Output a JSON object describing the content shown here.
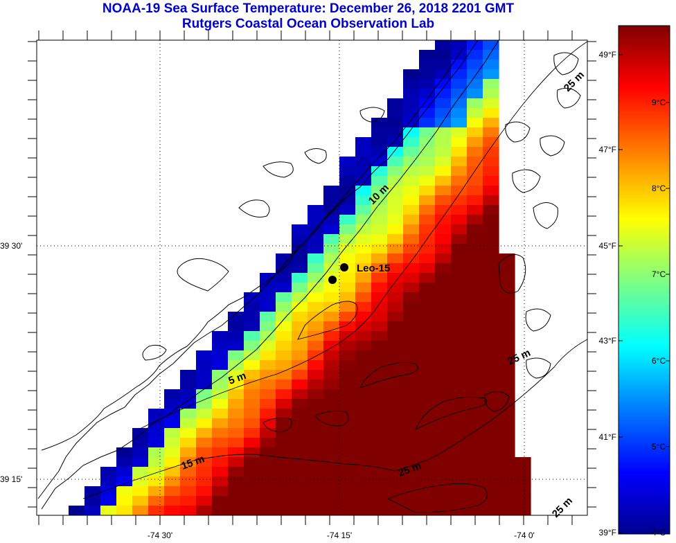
{
  "title": {
    "line1": "NOAA-19 Sea Surface Temperature:  December 26, 2018 2201 GMT",
    "line2": "Rutgers Coastal Ocean Observation Lab"
  },
  "map": {
    "x_ticks": [
      "-74 30'",
      "-74 15'",
      "-74 0'"
    ],
    "y_ticks": [
      "39 30'",
      "39 15'"
    ],
    "contour_labels": [
      "25 m",
      "10 m",
      "5 m",
      "15 m",
      "25 m",
      "25 m",
      "25 m"
    ],
    "station": {
      "label": "Leo-15"
    }
  },
  "colorbar": {
    "fahrenheit_labels": [
      "49°F",
      "47°F",
      "45°F",
      "43°F",
      "41°F",
      "39°F"
    ],
    "celsius_labels": [
      "9°C",
      "8°C",
      "7°C",
      "6°C",
      "5°C",
      "4°C"
    ],
    "colormap": [
      "#00008f",
      "#0000ff",
      "#0080ff",
      "#00ffff",
      "#80ff80",
      "#ffff00",
      "#ff8000",
      "#ff0000",
      "#800000"
    ]
  },
  "colors": {
    "title": "#0000cc",
    "land_outline": "#000000",
    "background": "#ffffff"
  }
}
